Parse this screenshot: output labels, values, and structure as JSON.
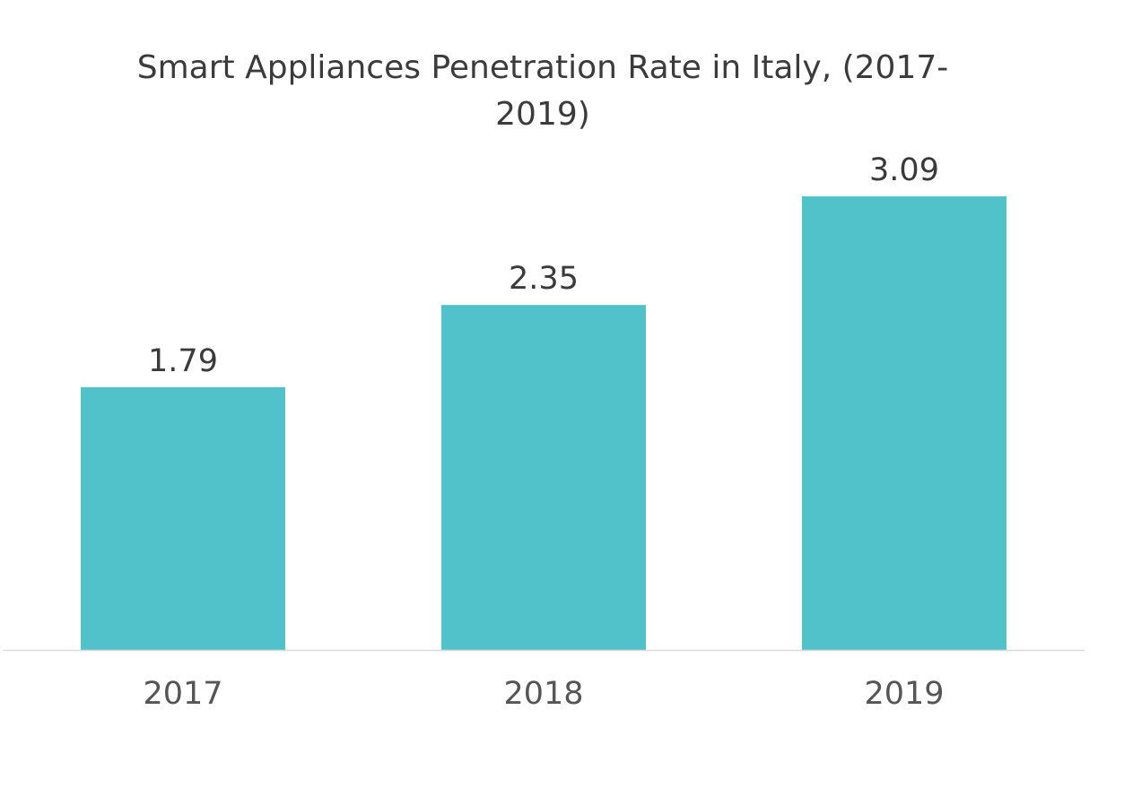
{
  "chart_data": {
    "type": "bar",
    "title": "Smart Appliances Penetration Rate in Italy, (2017-2019)",
    "categories": [
      "2017",
      "2018",
      "2019"
    ],
    "values": [
      1.79,
      2.35,
      3.09
    ],
    "data_labels": [
      "1.79",
      "2.35",
      "3.09"
    ],
    "xlabel": "",
    "ylabel": "",
    "ylim": [
      0,
      3.09
    ],
    "grid": false,
    "legend": "none",
    "bar_color": "#52c2ca",
    "axis_color": "#d9d9d9"
  }
}
